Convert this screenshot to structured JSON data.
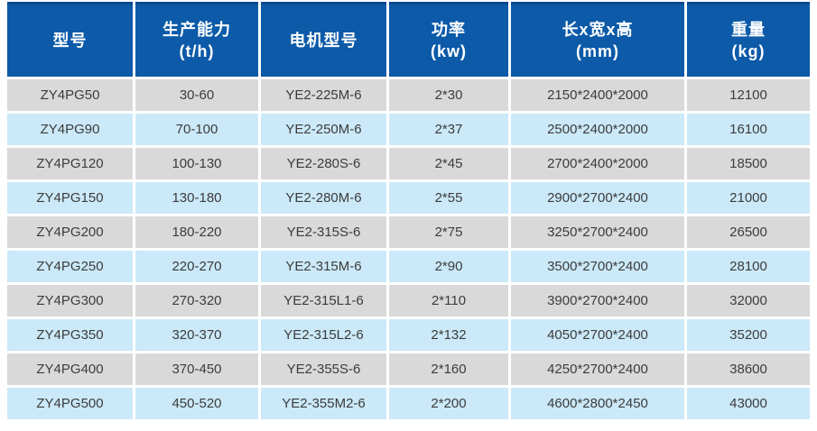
{
  "colors": {
    "page_bg": "#ffffff",
    "header_bg": "#0c5aa8",
    "header_border_top": "#094b8f",
    "header_text": "#ffffff",
    "row_gray": "#d9d9d9",
    "row_blue": "#cbe9f8",
    "body_text": "#3c3c3c"
  },
  "table": {
    "columns": [
      {
        "line1": "型号",
        "line2": ""
      },
      {
        "line1": "生产能力",
        "line2": "(t/h)"
      },
      {
        "line1": "电机型号",
        "line2": ""
      },
      {
        "line1": "功率",
        "line2": "(kw)"
      },
      {
        "line1": "长x宽x高",
        "line2": "(mm)"
      },
      {
        "line1": "重量",
        "line2": "(kg)"
      }
    ],
    "rows": [
      [
        "ZY4PG50",
        "30-60",
        "YE2-225M-6",
        "2*30",
        "2150*2400*2000",
        "12100"
      ],
      [
        "ZY4PG90",
        "70-100",
        "YE2-250M-6",
        "2*37",
        "2500*2400*2000",
        "16100"
      ],
      [
        "ZY4PG120",
        "100-130",
        "YE2-280S-6",
        "2*45",
        "2700*2400*2000",
        "18500"
      ],
      [
        "ZY4PG150",
        "130-180",
        "YE2-280M-6",
        "2*55",
        "2900*2700*2400",
        "21000"
      ],
      [
        "ZY4PG200",
        "180-220",
        "YE2-315S-6",
        "2*75",
        "3250*2700*2400",
        "26500"
      ],
      [
        "ZY4PG250",
        "220-270",
        "YE2-315M-6",
        "2*90",
        "3500*2700*2400",
        "28100"
      ],
      [
        "ZY4PG300",
        "270-320",
        "YE2-315L1-6",
        "2*110",
        "3900*2700*2400",
        "32000"
      ],
      [
        "ZY4PG350",
        "320-370",
        "YE2-315L2-6",
        "2*132",
        "4050*2700*2400",
        "35200"
      ],
      [
        "ZY4PG400",
        "370-450",
        "YE2-355S-6",
        "2*160",
        "4250*2700*2400",
        "38600"
      ],
      [
        "ZY4PG500",
        "450-520",
        "YE2-355M2-6",
        "2*200",
        "4600*2800*2450",
        "43000"
      ]
    ]
  },
  "chart_data": {
    "type": "table",
    "columns": [
      "型号",
      "生产能力 (t/h)",
      "电机型号",
      "功率 (kw)",
      "长x宽x高 (mm)",
      "重量 (kg)"
    ],
    "rows": [
      [
        "ZY4PG50",
        "30-60",
        "YE2-225M-6",
        "2*30",
        "2150*2400*2000",
        12100
      ],
      [
        "ZY4PG90",
        "70-100",
        "YE2-250M-6",
        "2*37",
        "2500*2400*2000",
        16100
      ],
      [
        "ZY4PG120",
        "100-130",
        "YE2-280S-6",
        "2*45",
        "2700*2400*2000",
        18500
      ],
      [
        "ZY4PG150",
        "130-180",
        "YE2-280M-6",
        "2*55",
        "2900*2700*2400",
        21000
      ],
      [
        "ZY4PG200",
        "180-220",
        "YE2-315S-6",
        "2*75",
        "3250*2700*2400",
        26500
      ],
      [
        "ZY4PG250",
        "220-270",
        "YE2-315M-6",
        "2*90",
        "3500*2700*2400",
        28100
      ],
      [
        "ZY4PG300",
        "270-320",
        "YE2-315L1-6",
        "2*110",
        "3900*2700*2400",
        32000
      ],
      [
        "ZY4PG350",
        "320-370",
        "YE2-315L2-6",
        "2*132",
        "4050*2700*2400",
        35200
      ],
      [
        "ZY4PG400",
        "370-450",
        "YE2-355S-6",
        "2*160",
        "4250*2700*2400",
        38600
      ],
      [
        "ZY4PG500",
        "450-520",
        "YE2-355M2-6",
        "2*200",
        "4600*2800*2450",
        43000
      ]
    ],
    "layout": {
      "row_striping": [
        "gray",
        "light-blue"
      ],
      "header_position": "top",
      "grid": "white 3px gutters"
    }
  }
}
